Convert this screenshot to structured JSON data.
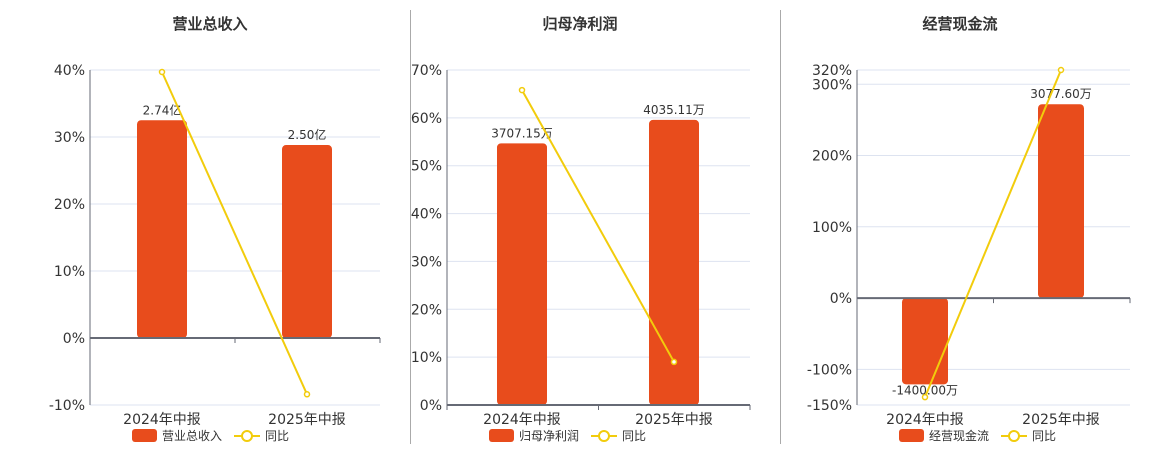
{
  "colors": {
    "bar": "#e84c1c",
    "line": "#f2cc0c",
    "grid": "#dde3f0",
    "axis": "#666a75"
  },
  "chart_data": [
    {
      "type": "bar+line",
      "title": "营业总收入",
      "categories": [
        "2024年中报",
        "2025年中报"
      ],
      "bar_series": {
        "name": "营业总收入",
        "values": [
          2.74,
          2.5
        ],
        "labels": [
          "2.74亿",
          "2.50亿"
        ],
        "unit": "亿"
      },
      "line_series": {
        "name": "同比",
        "values": [
          39.7,
          -8.4
        ]
      },
      "yticks": [
        "40%",
        "30%",
        "20%",
        "10%",
        "0%",
        "-10%"
      ],
      "ytick_values": [
        40,
        30,
        20,
        10,
        0,
        -10
      ],
      "ylim": [
        -10,
        40
      ]
    },
    {
      "type": "bar+line",
      "title": "归母净利润",
      "categories": [
        "2024年中报",
        "2025年中报"
      ],
      "bar_series": {
        "name": "归母净利润",
        "values": [
          3707.15,
          4035.11
        ],
        "labels": [
          "3707.15万",
          "4035.11万"
        ],
        "unit": "万"
      },
      "line_series": {
        "name": "同比",
        "values": [
          65.8,
          9.0
        ]
      },
      "yticks": [
        "70%",
        "60%",
        "50%",
        "40%",
        "30%",
        "20%",
        "10%",
        "0%"
      ],
      "ytick_values": [
        70,
        60,
        50,
        40,
        30,
        20,
        10,
        0
      ],
      "ylim": [
        0,
        70
      ]
    },
    {
      "type": "bar+line",
      "title": "经营现金流",
      "categories": [
        "2024年中报",
        "2025年中报"
      ],
      "bar_series": {
        "name": "经营现金流",
        "values": [
          -1400.0,
          3077.6
        ],
        "labels": [
          "-1400.00万",
          "3077.60万"
        ],
        "unit": "万"
      },
      "line_series": {
        "name": "同比",
        "values": [
          -139,
          320
        ]
      },
      "yticks": [
        "320%",
        "300%",
        "200%",
        "100%",
        "0%",
        "-100%",
        "-150%"
      ],
      "ytick_values": [
        320,
        300,
        200,
        100,
        0,
        -100,
        -150
      ],
      "ylim": [
        -150,
        320
      ]
    }
  ]
}
